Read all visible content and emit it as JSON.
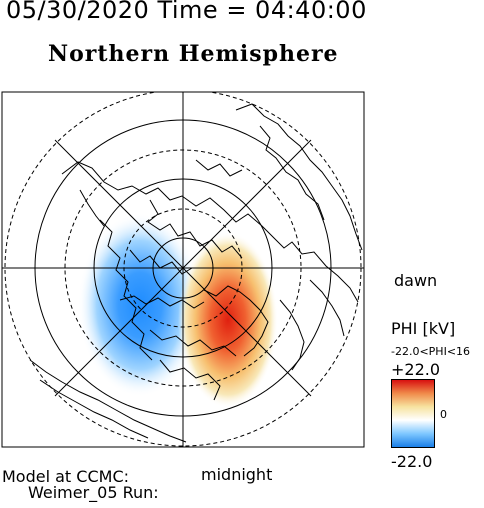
{
  "header": {
    "date_time": "05/30/2020 Time = 04:40:00",
    "hemisphere_title": "Northern Hemisphere"
  },
  "map": {
    "dawn_label": "dawn",
    "midnight_label": "midnight",
    "colors": {
      "negative": "#1e8cff",
      "positive": "#e02010",
      "neutral": "#ffffff",
      "land_outline": "#000000",
      "grid": "#000000"
    }
  },
  "colorbar": {
    "title": "PHI [kV]",
    "range_text": "-22.0<PHI<16",
    "max_label": "+22.0",
    "mid_label": "0",
    "min_label": "-22.0",
    "stops": [
      "#1a7fe8",
      "#7fc8ff",
      "#ffffff",
      "#f7e3a0",
      "#f08a4a",
      "#d81010"
    ]
  },
  "footer": {
    "line1": "Model at CCMC:",
    "line2": "Weimer_05 Run:"
  }
}
